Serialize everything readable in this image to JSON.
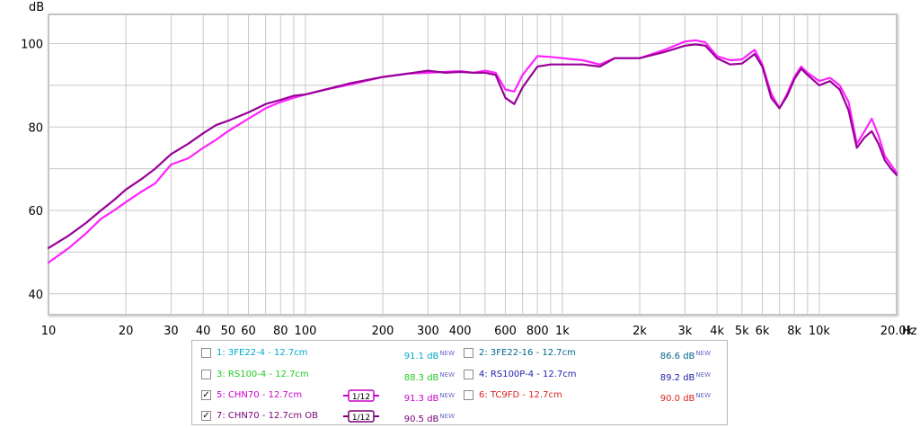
{
  "chart_data": {
    "type": "line",
    "x_scale": "log",
    "ylabel": "dB",
    "xlabel": "Hz",
    "xlim": [
      10,
      20000
    ],
    "ylim": [
      35,
      107
    ],
    "grid": true,
    "y_ticks": [
      {
        "value": 40,
        "label": "40"
      },
      {
        "value": 60,
        "label": "60"
      },
      {
        "value": 80,
        "label": "80"
      },
      {
        "value": 100,
        "label": "100"
      }
    ],
    "x_ticks": [
      {
        "value": 10,
        "label": "10"
      },
      {
        "value": 20,
        "label": "20"
      },
      {
        "value": 30,
        "label": "30"
      },
      {
        "value": 40,
        "label": "40"
      },
      {
        "value": 50,
        "label": "50"
      },
      {
        "value": 60,
        "label": "60"
      },
      {
        "value": 80,
        "label": "80"
      },
      {
        "value": 100,
        "label": "100"
      },
      {
        "value": 200,
        "label": "200"
      },
      {
        "value": 300,
        "label": "300"
      },
      {
        "value": 400,
        "label": "400"
      },
      {
        "value": 600,
        "label": "600"
      },
      {
        "value": 800,
        "label": "800"
      },
      {
        "value": 1000,
        "label": "1k"
      },
      {
        "value": 2000,
        "label": "2k"
      },
      {
        "value": 3000,
        "label": "3k"
      },
      {
        "value": 4000,
        "label": "4k"
      },
      {
        "value": 5000,
        "label": "5k"
      },
      {
        "value": 6000,
        "label": "6k"
      },
      {
        "value": 8000,
        "label": "8k"
      },
      {
        "value": 10000,
        "label": "10k"
      },
      {
        "value": 20000,
        "label": "20.0k"
      }
    ],
    "series": [
      {
        "name": "5: CHN70 - 12.7cm",
        "color": "#ff22ff",
        "x": [
          10,
          12,
          14,
          16,
          18,
          20,
          23,
          26,
          30,
          35,
          40,
          45,
          50,
          60,
          70,
          80,
          90,
          100,
          120,
          150,
          200,
          250,
          300,
          350,
          400,
          450,
          500,
          550,
          600,
          650,
          700,
          800,
          900,
          1000,
          1200,
          1400,
          1600,
          2000,
          2500,
          3000,
          3300,
          3600,
          4000,
          4500,
          5000,
          5600,
          6000,
          6500,
          7000,
          7500,
          8000,
          8500,
          9000,
          10000,
          11000,
          12000,
          13000,
          14000,
          15000,
          16000,
          17000,
          18000,
          19000,
          20000
        ],
        "y": [
          47.5,
          51.0,
          54.5,
          58.0,
          60.0,
          62.0,
          64.5,
          66.5,
          71.0,
          72.5,
          75.0,
          77.0,
          79.0,
          82.0,
          84.5,
          86.0,
          87.0,
          87.8,
          89.0,
          90.2,
          92.0,
          92.8,
          93.0,
          93.2,
          93.4,
          93.0,
          93.5,
          93.0,
          89.0,
          88.5,
          92.5,
          97.0,
          96.8,
          96.5,
          96.0,
          95.0,
          96.5,
          96.5,
          98.5,
          100.5,
          100.8,
          100.3,
          97.0,
          96.0,
          96.2,
          98.5,
          95.0,
          88.0,
          84.5,
          88.0,
          92.0,
          94.5,
          93.0,
          91.0,
          91.8,
          90.0,
          86.0,
          76.0,
          79.0,
          82.0,
          78.0,
          73.0,
          71.0,
          69.0
        ]
      },
      {
        "name": "7: CHN70 - 12.7cm OB",
        "color": "#990099",
        "x": [
          10,
          12,
          14,
          16,
          18,
          20,
          23,
          26,
          30,
          35,
          40,
          45,
          50,
          60,
          70,
          80,
          90,
          100,
          120,
          150,
          200,
          250,
          300,
          350,
          400,
          450,
          500,
          550,
          600,
          650,
          700,
          800,
          900,
          1000,
          1200,
          1400,
          1600,
          2000,
          2500,
          3000,
          3300,
          3600,
          4000,
          4500,
          5000,
          5600,
          6000,
          6500,
          7000,
          7500,
          8000,
          8500,
          9000,
          10000,
          11000,
          12000,
          13000,
          14000,
          15000,
          16000,
          17000,
          18000,
          19000,
          20000
        ],
        "y": [
          51.0,
          54.0,
          57.0,
          60.0,
          62.5,
          65.0,
          67.5,
          70.0,
          73.5,
          76.0,
          78.5,
          80.5,
          81.5,
          83.5,
          85.5,
          86.5,
          87.5,
          87.8,
          89.0,
          90.5,
          92.0,
          92.8,
          93.5,
          93.0,
          93.2,
          93.0,
          93.0,
          92.5,
          87.0,
          85.5,
          89.5,
          94.5,
          95.0,
          95.0,
          95.0,
          94.5,
          96.5,
          96.5,
          98.0,
          99.5,
          99.8,
          99.5,
          96.5,
          95.0,
          95.2,
          97.5,
          94.5,
          87.0,
          84.5,
          87.5,
          91.5,
          94.0,
          92.5,
          90.0,
          91.0,
          89.0,
          84.0,
          75.0,
          77.5,
          79.0,
          76.0,
          72.0,
          70.0,
          68.5
        ]
      }
    ]
  },
  "legend": {
    "rows": [
      {
        "label": "1: 3FE22-4 - 12.7cm",
        "level": "91.1 dB",
        "checked": false,
        "color": "#00aacc"
      },
      {
        "label": "2: 3FE22-16 - 12.7cm",
        "level": "86.6 dB",
        "checked": false,
        "color": "#006688"
      },
      {
        "label": "3: RS100-4 - 12.7cm",
        "level": "88.3 dB",
        "checked": false,
        "color": "#22cc22"
      },
      {
        "label": "4: RS100P-4 - 12.7cm",
        "level": "89.2 dB",
        "checked": false,
        "color": "#2222aa"
      },
      {
        "label": "5: CHN70 - 12.7cm",
        "level": "91.3 dB",
        "checked": true,
        "color": "#cc00cc",
        "smoothing": "1/12"
      },
      {
        "label": "6: TC9FD - 12.7cm",
        "level": "90.0 dB",
        "checked": false,
        "color": "#dd2222"
      },
      {
        "label": "7: CHN70 - 12.7cm OB",
        "level": "90.5 dB",
        "checked": true,
        "color": "#770077",
        "smoothing": "1/12"
      }
    ],
    "new_label": "NEW",
    "check_mark": "✓"
  },
  "colors": {
    "plot_border": "#c4c4c4",
    "grid": "#c8c8c8",
    "new_badge": "#6666cc"
  }
}
